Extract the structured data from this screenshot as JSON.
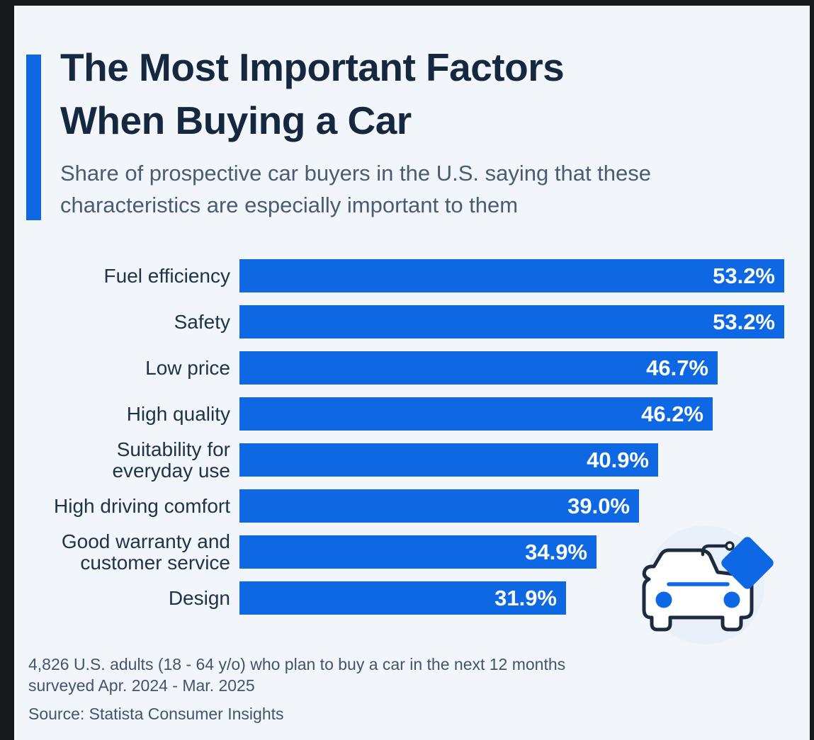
{
  "header": {
    "title": "The Most Important Factors\nWhen Buying a Car",
    "subtitle": "Share of prospective car buyers in the U.S. saying that these\ncharacteristics are especially important to them"
  },
  "chart_data": {
    "type": "bar",
    "orientation": "horizontal",
    "title": "The Most Important Factors When Buying a Car",
    "categories": [
      "Fuel efficiency",
      "Safety",
      "Low price",
      "High quality",
      "Suitability for\neveryday use",
      "High driving comfort",
      "Good warranty and\ncustomer service",
      "Design"
    ],
    "values": [
      53.2,
      53.2,
      46.7,
      46.2,
      40.9,
      39.0,
      34.9,
      31.9
    ],
    "value_labels": [
      "53.2%",
      "53.2%",
      "46.7%",
      "46.2%",
      "40.9%",
      "39.0%",
      "34.9%",
      "31.9%"
    ],
    "unit": "%",
    "xlim": [
      0,
      56.5
    ],
    "grid": false,
    "legend": false,
    "value_label_position": "inside-end",
    "bar_color": "#0e67e3"
  },
  "footer": {
    "note": "4,826 U.S. adults (18 - 64 y/o) who plan to buy a car in the next 12 months\nsurveyed Apr. 2024 - Mar. 2025",
    "source": "Source: Statista Consumer Insights"
  },
  "icons": {
    "car_price_tag": "car-with-price-tag-icon"
  },
  "colors": {
    "accent_blue": "#0e67e3",
    "background": "#f2f5f9",
    "frame": "#17181c",
    "title_text": "#152840",
    "subtitle_text": "#4a5c73",
    "label_text": "#203449",
    "value_text": "#ffffff",
    "footer_text": "#42556c",
    "icon_outline": "#1d2b3f",
    "icon_circle_bg": "#e9f0fa"
  }
}
